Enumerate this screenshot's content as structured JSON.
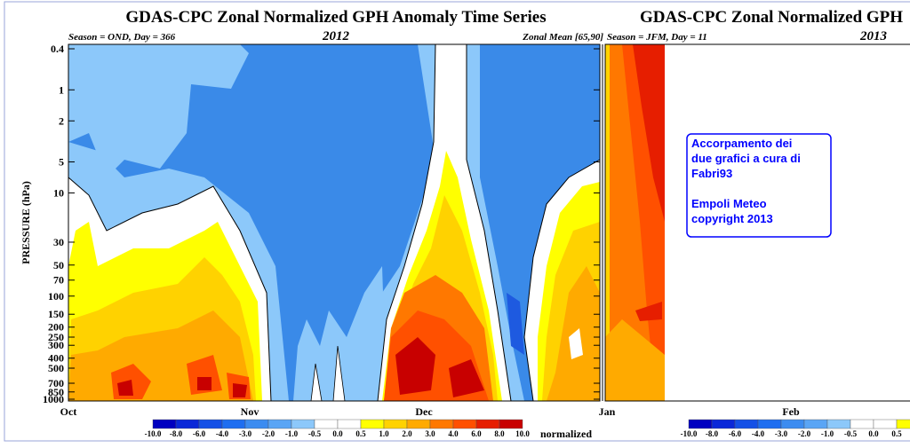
{
  "panels": [
    {
      "title": "GDAS-CPC Zonal Normalized GPH Anomaly Time Series",
      "season": "Season = OND, Day = 366",
      "year": "2012",
      "zonal_mean": "Zonal Mean [65,90]",
      "y_label": "PRESSURE (hPa)",
      "ylim": [
        0.4,
        1000
      ],
      "log_scale": true,
      "yticks": [
        0.4,
        1,
        2,
        5,
        10,
        30,
        50,
        70,
        100,
        150,
        200,
        250,
        300,
        400,
        500,
        700,
        850,
        1000
      ],
      "months": [
        "Oct",
        "Nov",
        "Dec",
        "Jan"
      ]
    },
    {
      "title": "GDAS-CPC Zonal Normalized GPH",
      "season": "Season = JFM, Day =  11",
      "year": "2013",
      "months": [
        "Feb"
      ]
    }
  ],
  "colorbar": {
    "labels": [
      "-10.0",
      "-8.0",
      "-6.0",
      "-4.0",
      "-3.0",
      "-2.0",
      "-1.0",
      "-0.5",
      "0.0",
      "0.5",
      "1.0",
      "2.0",
      "3.0",
      "4.0",
      "6.0",
      "8.0",
      "10.0"
    ],
    "colors": [
      "#0000c0",
      "#0a28d8",
      "#1450e6",
      "#1e6ef0",
      "#3c8cf0",
      "#5aa5f5",
      "#8cc8fa",
      "#ffffff",
      "#ffffff",
      "#ffff00",
      "#ffd200",
      "#ffaa00",
      "#ff7800",
      "#ff5000",
      "#e61e00",
      "#c80000"
    ],
    "unit": "normalized"
  },
  "note": {
    "paragraphs": [
      [
        "Accorpamento dei",
        "due grafici a cura di",
        "Fabri93"
      ],
      [
        "Empoli Meteo",
        "copyright 2013"
      ]
    ]
  }
}
